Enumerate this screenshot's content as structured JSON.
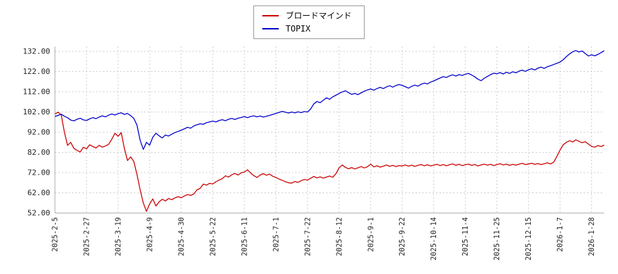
{
  "legend": {
    "position": "top-center",
    "border_color": "#999999"
  },
  "chart_data": {
    "type": "line",
    "title": "",
    "xlabel": "",
    "ylabel": "",
    "grid": true,
    "grid_style": "dotted",
    "ylim": [
      52,
      132
    ],
    "y_ticks": [
      52,
      62,
      72,
      82,
      92,
      102,
      112,
      122,
      132
    ],
    "y_tick_format": "0.00",
    "x_tick_labels": [
      "2025-2-5",
      "2025-2-27",
      "2025-3-19",
      "2025-4-9",
      "2025-4-30",
      "2025-5-22",
      "2025-6-11",
      "2025-7-1",
      "2025-7-22",
      "2025-8-12",
      "2025-9-1",
      "2025-9-22",
      "2025-10-14",
      "2025-11-4",
      "2025-11-25",
      "2025-12-15",
      "2026-1-7",
      "2026-1-28"
    ],
    "x_tick_indices": [
      0,
      10,
      20,
      30,
      40,
      50,
      60,
      70,
      80,
      90,
      100,
      110,
      120,
      130,
      140,
      150,
      160,
      170
    ],
    "series": [
      {
        "name": "ブロードマインド",
        "key": "broadmind",
        "color": "#cc0000",
        "values": [
          101.0,
          101.9,
          100.5,
          92.0,
          85.5,
          87.0,
          84.0,
          83.0,
          82.2,
          84.5,
          83.8,
          85.8,
          84.9,
          84.2,
          85.5,
          84.6,
          85.2,
          86.0,
          88.5,
          91.5,
          90.0,
          91.8,
          84.0,
          78.0,
          79.8,
          77.5,
          71.0,
          63.5,
          57.0,
          52.8,
          56.5,
          59.0,
          55.5,
          57.5,
          58.8,
          58.0,
          59.2,
          58.6,
          59.5,
          60.1,
          59.6,
          60.4,
          61.2,
          60.7,
          61.5,
          63.5,
          64.2,
          66.3,
          65.8,
          66.7,
          66.4,
          67.5,
          68.3,
          69.0,
          70.4,
          69.8,
          70.9,
          71.6,
          70.8,
          71.9,
          72.3,
          73.4,
          71.8,
          70.5,
          69.6,
          70.8,
          71.5,
          70.7,
          71.3,
          70.2,
          69.6,
          68.8,
          68.2,
          67.5,
          67.0,
          66.8,
          67.6,
          67.2,
          68.0,
          68.6,
          68.3,
          69.2,
          70.1,
          69.4,
          69.9,
          69.3,
          69.8,
          70.3,
          69.7,
          71.5,
          74.3,
          75.8,
          74.6,
          73.9,
          74.5,
          73.8,
          74.4,
          75.0,
          74.3,
          74.9,
          76.2,
          74.8,
          75.4,
          74.7,
          75.2,
          75.8,
          75.1,
          75.6,
          75.0,
          75.5,
          75.3,
          75.8,
          75.2,
          75.7,
          75.1,
          75.6,
          76.0,
          75.4,
          75.9,
          75.3,
          75.7,
          76.1,
          75.5,
          76.0,
          75.4,
          75.9,
          76.3,
          75.6,
          76.1,
          75.5,
          75.9,
          76.2,
          75.6,
          76.0,
          75.3,
          75.8,
          76.2,
          75.7,
          76.1,
          75.5,
          76.0,
          76.4,
          75.8,
          76.2,
          75.6,
          76.1,
          75.7,
          76.2,
          76.6,
          76.0,
          76.3,
          76.6,
          76.1,
          76.5,
          76.0,
          76.4,
          76.8,
          76.3,
          77.2,
          80.0,
          83.2,
          85.8,
          87.0,
          87.8,
          87.2,
          88.2,
          87.5,
          86.8,
          87.3,
          86.1,
          85.0,
          84.6,
          85.4,
          84.9,
          85.6
        ]
      },
      {
        "name": "TOPIX",
        "key": "topix",
        "color": "#0000cc",
        "values": [
          99.8,
          100.3,
          100.9,
          99.9,
          99.2,
          98.0,
          97.6,
          98.4,
          98.9,
          98.1,
          97.8,
          98.6,
          99.2,
          98.7,
          99.5,
          100.1,
          99.6,
          100.4,
          101.0,
          100.5,
          101.2,
          101.6,
          100.8,
          101.3,
          100.2,
          98.8,
          95.5,
          88.0,
          83.5,
          87.0,
          85.6,
          89.5,
          91.5,
          90.2,
          89.2,
          90.6,
          90.1,
          91.0,
          91.8,
          92.4,
          93.0,
          93.7,
          94.4,
          94.0,
          95.1,
          95.7,
          96.2,
          95.9,
          96.7,
          97.1,
          97.5,
          97.1,
          97.8,
          98.2,
          97.7,
          98.4,
          98.8,
          98.3,
          98.9,
          99.3,
          99.7,
          99.2,
          99.8,
          100.1,
          99.6,
          100.0,
          99.5,
          99.9,
          100.3,
          100.8,
          101.3,
          101.8,
          102.3,
          101.9,
          101.5,
          102.0,
          101.6,
          102.1,
          101.7,
          102.2,
          102.0,
          103.5,
          106.0,
          107.2,
          106.6,
          107.8,
          109.0,
          108.3,
          109.5,
          110.3,
          111.2,
          111.9,
          112.5,
          111.6,
          110.7,
          111.2,
          110.6,
          111.5,
          112.3,
          112.9,
          113.4,
          112.8,
          113.6,
          114.2,
          113.6,
          114.4,
          115.0,
          114.3,
          115.1,
          115.6,
          115.2,
          114.5,
          113.8,
          114.7,
          115.3,
          114.8,
          115.7,
          116.3,
          115.9,
          116.8,
          117.4,
          118.1,
          118.8,
          119.5,
          119.1,
          119.9,
          120.4,
          119.8,
          120.5,
          120.1,
          120.7,
          121.1,
          120.3,
          119.4,
          118.2,
          117.5,
          118.7,
          119.6,
          120.5,
          121.2,
          120.9,
          121.5,
          120.8,
          121.7,
          121.1,
          121.9,
          121.4,
          122.2,
          122.7,
          122.1,
          122.9,
          123.4,
          122.8,
          123.7,
          124.2,
          123.6,
          124.4,
          124.9,
          125.5,
          126.1,
          126.7,
          127.9,
          129.4,
          130.7,
          131.8,
          132.4,
          131.7,
          132.2,
          130.9,
          129.7,
          130.3,
          129.8,
          130.5,
          131.4,
          132.3
        ]
      }
    ],
    "colors": {
      "gridline": "#cccccc",
      "axis": "#aaaaaa",
      "tick_text": "#222222",
      "background": "#ffffff"
    }
  }
}
